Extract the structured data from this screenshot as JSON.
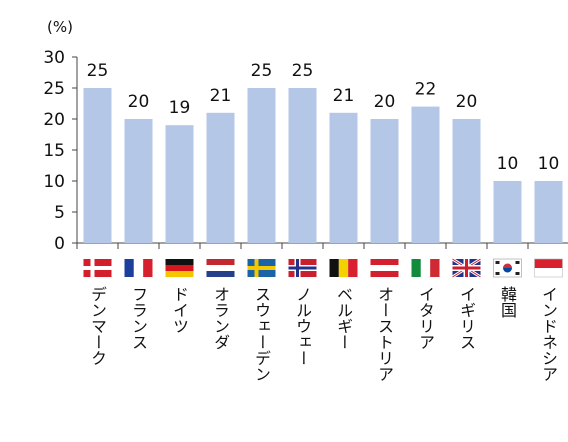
{
  "chart_data": {
    "type": "bar",
    "title": "",
    "xlabel": "",
    "ylabel": "(%)",
    "ylim": [
      0,
      30
    ],
    "yticks": [
      0,
      5,
      10,
      15,
      20,
      25,
      30
    ],
    "grid": false,
    "legend": "none",
    "bar_color": "#b4c7e7",
    "categories": [
      "デンマーク",
      "フランス",
      "ドイツ",
      "オランダ",
      "スウェーデン",
      "ノルウェー",
      "ベルギー",
      "オーストリア",
      "イタリア",
      "イギリス",
      "韓国",
      "インドネシア"
    ],
    "values": [
      25,
      20,
      19,
      21,
      25,
      25,
      21,
      20,
      22,
      20,
      10,
      10
    ],
    "flags": [
      {
        "name": "denmark-flag-icon"
      },
      {
        "name": "france-flag-icon"
      },
      {
        "name": "germany-flag-icon"
      },
      {
        "name": "netherlands-flag-icon"
      },
      {
        "name": "sweden-flag-icon"
      },
      {
        "name": "norway-flag-icon"
      },
      {
        "name": "belgium-flag-icon"
      },
      {
        "name": "austria-flag-icon"
      },
      {
        "name": "italy-flag-icon"
      },
      {
        "name": "uk-flag-icon"
      },
      {
        "name": "korea-flag-icon"
      },
      {
        "name": "indonesia-flag-icon"
      }
    ]
  }
}
